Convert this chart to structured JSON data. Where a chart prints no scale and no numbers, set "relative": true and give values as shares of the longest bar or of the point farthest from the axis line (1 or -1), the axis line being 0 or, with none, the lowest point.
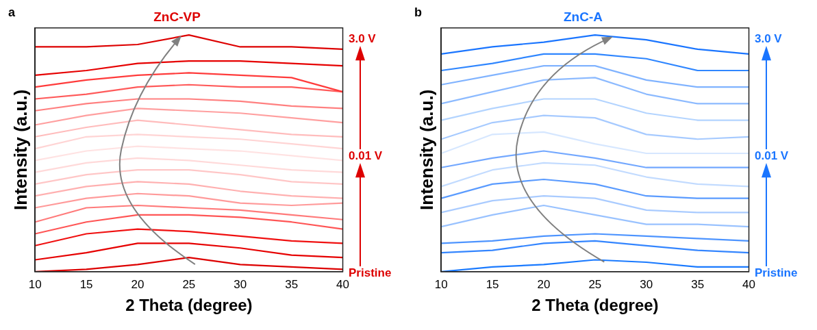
{
  "chart_data": [
    {
      "type": "line",
      "title": "ZnC-VP",
      "xlabel": "2 Theta (degree)",
      "ylabel": "Intensity (a.u.)",
      "relative": true,
      "xlim": [
        10,
        40
      ],
      "xticks": [
        10,
        15,
        20,
        25,
        30,
        35,
        40
      ],
      "grid": false,
      "legend": false,
      "marker": "none",
      "x": [
        10,
        15,
        20,
        25,
        30,
        35,
        40
      ],
      "annotations": [
        "a",
        "3.0 V",
        "0.01 V",
        "Pristine"
      ],
      "series": [
        {
          "color": "#dd0000",
          "values": [
            0.95,
            0.95,
            0.96,
            1.0,
            0.95,
            0.95,
            0.94
          ]
        },
        {
          "color": "#e60000",
          "values": [
            0.83,
            0.85,
            0.88,
            0.89,
            0.89,
            0.88,
            0.87
          ]
        },
        {
          "color": "#ff3b3b",
          "values": [
            0.78,
            0.81,
            0.83,
            0.84,
            0.83,
            0.82,
            0.76
          ]
        },
        {
          "color": "#ff5a5a",
          "values": [
            0.73,
            0.75,
            0.78,
            0.79,
            0.78,
            0.78,
            0.76
          ]
        },
        {
          "color": "#ff8080",
          "values": [
            0.68,
            0.71,
            0.73,
            0.73,
            0.72,
            0.7,
            0.69
          ]
        },
        {
          "color": "#ff9f9f",
          "values": [
            0.62,
            0.66,
            0.69,
            0.68,
            0.67,
            0.65,
            0.63
          ]
        },
        {
          "color": "#ffbcbc",
          "values": [
            0.57,
            0.61,
            0.64,
            0.62,
            0.6,
            0.58,
            0.57
          ]
        },
        {
          "color": "#ffd4d4",
          "values": [
            0.52,
            0.57,
            0.58,
            0.57,
            0.56,
            0.54,
            0.52
          ]
        },
        {
          "color": "#ffe2e2",
          "values": [
            0.47,
            0.51,
            0.53,
            0.52,
            0.51,
            0.49,
            0.47
          ]
        },
        {
          "color": "#ffd9d9",
          "values": [
            0.42,
            0.46,
            0.48,
            0.47,
            0.45,
            0.43,
            0.42
          ]
        },
        {
          "color": "#ffc6c6",
          "values": [
            0.37,
            0.41,
            0.43,
            0.43,
            0.41,
            0.38,
            0.37
          ]
        },
        {
          "color": "#ffb0b0",
          "values": [
            0.32,
            0.36,
            0.38,
            0.37,
            0.34,
            0.32,
            0.31
          ]
        },
        {
          "color": "#ff9a9a",
          "values": [
            0.27,
            0.31,
            0.33,
            0.32,
            0.29,
            0.28,
            0.29
          ]
        },
        {
          "color": "#ff7a7a",
          "values": [
            0.21,
            0.27,
            0.28,
            0.27,
            0.26,
            0.24,
            0.22
          ]
        },
        {
          "color": "#ff5555",
          "values": [
            0.16,
            0.21,
            0.24,
            0.24,
            0.23,
            0.21,
            0.18
          ]
        },
        {
          "color": "#f01010",
          "values": [
            0.11,
            0.16,
            0.18,
            0.17,
            0.15,
            0.13,
            0.12
          ]
        },
        {
          "color": "#e60000",
          "values": [
            0.05,
            0.08,
            0.12,
            0.12,
            0.1,
            0.07,
            0.06
          ]
        },
        {
          "color": "#dd0000",
          "values": [
            0.0,
            0.01,
            0.03,
            0.06,
            0.03,
            0.02,
            0.01
          ]
        }
      ]
    },
    {
      "type": "line",
      "title": "ZnC-A",
      "xlabel": "2 Theta (degree)",
      "ylabel": "Intensity (a.u.)",
      "relative": true,
      "xlim": [
        10,
        40
      ],
      "xticks": [
        10,
        15,
        20,
        25,
        30,
        35,
        40
      ],
      "grid": false,
      "legend": false,
      "marker": "none",
      "x": [
        10,
        15,
        20,
        25,
        30,
        35,
        40
      ],
      "annotations": [
        "b",
        "3.0 V",
        "0.01 V",
        "Pristine"
      ],
      "series": [
        {
          "color": "#1a75ff",
          "values": [
            0.92,
            0.95,
            0.97,
            1.0,
            0.98,
            0.94,
            0.92
          ]
        },
        {
          "color": "#2f86ff",
          "values": [
            0.85,
            0.88,
            0.92,
            0.92,
            0.9,
            0.85,
            0.85
          ]
        },
        {
          "color": "#80b3ff",
          "values": [
            0.79,
            0.83,
            0.87,
            0.87,
            0.81,
            0.78,
            0.78
          ]
        },
        {
          "color": "#8cbaff",
          "values": [
            0.71,
            0.76,
            0.81,
            0.82,
            0.75,
            0.71,
            0.71
          ]
        },
        {
          "color": "#b3d4ff",
          "values": [
            0.64,
            0.69,
            0.73,
            0.73,
            0.67,
            0.64,
            0.64
          ]
        },
        {
          "color": "#a6caff",
          "values": [
            0.56,
            0.63,
            0.66,
            0.65,
            0.58,
            0.56,
            0.57
          ]
        },
        {
          "color": "#d6e7ff",
          "values": [
            0.5,
            0.58,
            0.59,
            0.54,
            0.5,
            0.5,
            0.5
          ]
        },
        {
          "color": "#73a8ff",
          "values": [
            0.44,
            0.48,
            0.51,
            0.48,
            0.44,
            0.44,
            0.44
          ]
        },
        {
          "color": "#c2dbff",
          "values": [
            0.36,
            0.43,
            0.46,
            0.45,
            0.4,
            0.37,
            0.36
          ]
        },
        {
          "color": "#5a9bff",
          "values": [
            0.31,
            0.37,
            0.39,
            0.37,
            0.32,
            0.31,
            0.31
          ]
        },
        {
          "color": "#a9cbff",
          "values": [
            0.25,
            0.3,
            0.32,
            0.31,
            0.26,
            0.25,
            0.25
          ]
        },
        {
          "color": "#99c2ff",
          "values": [
            0.19,
            0.24,
            0.28,
            0.24,
            0.2,
            0.2,
            0.19
          ]
        },
        {
          "color": "#4d94ff",
          "values": [
            0.12,
            0.13,
            0.15,
            0.16,
            0.15,
            0.14,
            0.13
          ]
        },
        {
          "color": "#3385ff",
          "values": [
            0.08,
            0.09,
            0.12,
            0.13,
            0.11,
            0.09,
            0.08
          ]
        },
        {
          "color": "#1a7aff",
          "values": [
            0.0,
            0.02,
            0.03,
            0.05,
            0.04,
            0.02,
            0.02
          ]
        }
      ]
    }
  ]
}
